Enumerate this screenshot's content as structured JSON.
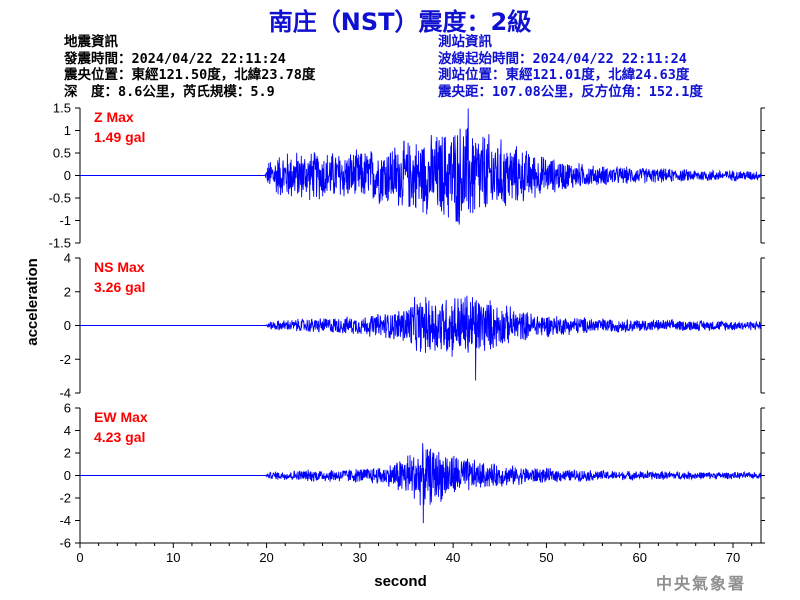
{
  "title": "南庄（NST）震度：2級",
  "earthquake_info": {
    "heading": "地震資訊",
    "origin_time": "發震時間：2024/04/22 22:11:24",
    "epicenter": "震央位置：東經121.50度，北緯23.78度",
    "depth_magnitude": "深　度：8.6公里，芮氏規模：5.9"
  },
  "station_info": {
    "heading": "測站資訊",
    "wave_start": "波線起始時間：2024/04/22 22:11:24",
    "station_location": "測站位置：東經121.01度，北緯24.63度",
    "distance_azimuth": "震央距：107.08公里，反方位角：152.1度"
  },
  "agency": "中央氣象署",
  "colors": {
    "trace": "#0000ff",
    "label": "#ff0000",
    "title": "#1010d0",
    "agency": "#909090"
  },
  "chart_data": {
    "type": "line",
    "xlabel": "second",
    "ylabel": "acceleration",
    "xlim": [
      0,
      73
    ],
    "x_ticks": [
      0,
      10,
      20,
      30,
      40,
      50,
      60,
      70
    ],
    "grid": false,
    "panels": [
      {
        "name": "Z",
        "max_label": "Z Max",
        "max_value": "1.49 gal",
        "ylim": [
          -1.5,
          1.5
        ],
        "y_ticks": [
          -1.5,
          -1,
          -0.5,
          0,
          0.5,
          1,
          1.5
        ],
        "y_tick_labels": [
          "-1.5",
          "-1",
          "-0.5",
          "0",
          "0.5",
          "1",
          "1.5"
        ],
        "peak_x": 41.6,
        "peak_value": 1.49,
        "envelope": [
          [
            0,
            0
          ],
          [
            19.8,
            0
          ],
          [
            20.3,
            0.4
          ],
          [
            22,
            0.6
          ],
          [
            30,
            0.6
          ],
          [
            34,
            0.8
          ],
          [
            38,
            1.0
          ],
          [
            41,
            1.3
          ],
          [
            44,
            1.0
          ],
          [
            47,
            0.7
          ],
          [
            50,
            0.45
          ],
          [
            55,
            0.25
          ],
          [
            60,
            0.2
          ],
          [
            65,
            0.15
          ],
          [
            73,
            0.12
          ]
        ]
      },
      {
        "name": "NS",
        "max_label": "NS Max",
        "max_value": "3.26 gal",
        "ylim": [
          -4,
          4
        ],
        "y_ticks": [
          -4,
          -2,
          0,
          2,
          4
        ],
        "y_tick_labels": [
          "-4",
          "-2",
          "0",
          "2",
          "4"
        ],
        "peak_x": 42.4,
        "peak_value": -3.26,
        "envelope": [
          [
            0,
            0
          ],
          [
            19.8,
            0
          ],
          [
            20.5,
            0.3
          ],
          [
            25,
            0.5
          ],
          [
            30,
            0.6
          ],
          [
            34,
            1.0
          ],
          [
            36,
            1.8
          ],
          [
            39,
            2.0
          ],
          [
            42,
            2.2
          ],
          [
            45,
            1.4
          ],
          [
            48,
            0.9
          ],
          [
            52,
            0.6
          ],
          [
            57,
            0.45
          ],
          [
            65,
            0.35
          ],
          [
            73,
            0.3
          ]
        ]
      },
      {
        "name": "EW",
        "max_label": "EW Max",
        "max_value": "4.23 gal",
        "ylim": [
          -6,
          6
        ],
        "y_ticks": [
          -6,
          -4,
          -2,
          0,
          2,
          4,
          6
        ],
        "y_tick_labels": [
          "-6",
          "-4",
          "-2",
          "0",
          "2",
          "4",
          "6"
        ],
        "peak_x": 36.8,
        "peak_value": -4.23,
        "envelope": [
          [
            0,
            0
          ],
          [
            19.8,
            0
          ],
          [
            20.5,
            0.4
          ],
          [
            25,
            0.6
          ],
          [
            30,
            0.7
          ],
          [
            33,
            1.0
          ],
          [
            35,
            2.2
          ],
          [
            37,
            3.0
          ],
          [
            40,
            2.2
          ],
          [
            43,
            1.3
          ],
          [
            47,
            0.9
          ],
          [
            52,
            0.6
          ],
          [
            58,
            0.45
          ],
          [
            65,
            0.4
          ],
          [
            73,
            0.3
          ]
        ]
      }
    ]
  }
}
